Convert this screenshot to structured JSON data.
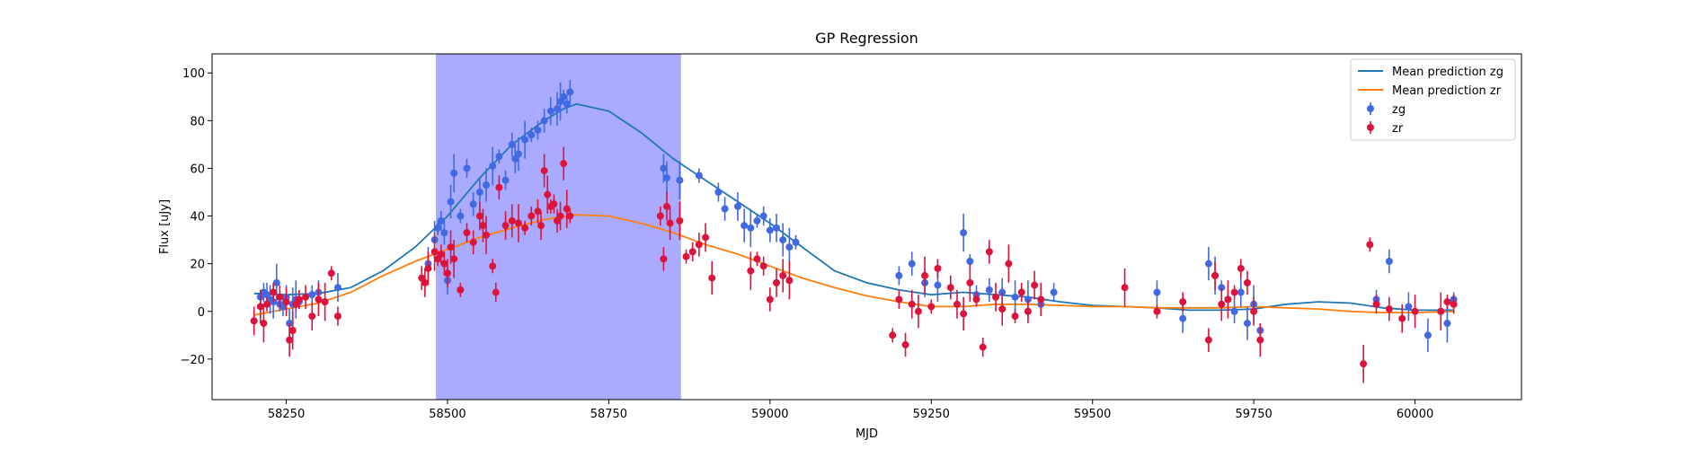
{
  "chart_data": {
    "type": "scatter",
    "title": "GP Regression",
    "xlabel": "MJD",
    "ylabel": "Flux [uJy]",
    "xlim": [
      58135,
      60165
    ],
    "ylim": [
      -37,
      108
    ],
    "xticks": [
      58250,
      58500,
      58750,
      59000,
      59250,
      59500,
      59750,
      60000
    ],
    "yticks": [
      -20,
      0,
      20,
      40,
      60,
      80,
      100
    ],
    "grid": false,
    "legend": "top-right",
    "shaded_region": {
      "x0": 58482,
      "x1": 58862,
      "color": "#aaaaff"
    },
    "lines": [
      {
        "name": "Mean prediction zg",
        "color": "#1f77b4",
        "x": [
          58200,
          58250,
          58300,
          58350,
          58400,
          58450,
          58500,
          58550,
          58600,
          58650,
          58680,
          58700,
          58750,
          58800,
          58850,
          58900,
          58950,
          59000,
          59050,
          59100,
          59150,
          59200,
          59250,
          59300,
          59350,
          59400,
          59450,
          59500,
          59550,
          59600,
          59650,
          59700,
          59750,
          59800,
          59850,
          59900,
          59950,
          60000,
          60060
        ],
        "y": [
          7.5,
          7.0,
          7.5,
          10,
          17,
          27,
          40,
          56,
          70,
          80,
          85,
          87,
          84,
          75,
          64,
          55,
          46,
          37,
          27,
          17,
          12,
          9,
          7,
          8,
          7,
          6,
          4,
          2.5,
          2,
          1.5,
          0.5,
          0.5,
          1,
          3,
          4,
          3.5,
          1.5,
          0.5,
          0.5
        ]
      },
      {
        "name": "Mean prediction zr",
        "color": "#ff7f0e",
        "x": [
          58200,
          58250,
          58300,
          58350,
          58400,
          58450,
          58500,
          58550,
          58600,
          58650,
          58700,
          58750,
          58800,
          58850,
          58900,
          58950,
          59000,
          59050,
          59100,
          59150,
          59200,
          59250,
          59300,
          59350,
          59400,
          59450,
          59500,
          59550,
          59600,
          59650,
          59700,
          59750,
          59800,
          59850,
          59900,
          59950,
          60000,
          60060
        ],
        "y": [
          -1.5,
          1,
          3.5,
          8,
          15,
          21,
          26,
          31,
          35,
          38.5,
          40.5,
          40,
          37,
          33,
          28,
          24,
          19,
          14,
          10,
          6.5,
          4,
          2,
          2,
          3,
          3,
          2.5,
          2,
          2,
          1.5,
          1.5,
          1.5,
          2,
          1.5,
          1,
          0,
          -0.5,
          -0.5,
          0
        ]
      }
    ],
    "series": [
      {
        "name": "zg",
        "color": "#4169e1",
        "x": [
          58210,
          58215,
          58220,
          58225,
          58230,
          58235,
          58240,
          58245,
          58250,
          58255,
          58260,
          58265,
          58270,
          58290,
          58300,
          58330,
          58470,
          58480,
          58485,
          58490,
          58495,
          58500,
          58505,
          58510,
          58520,
          58530,
          58540,
          58550,
          58560,
          58570,
          58580,
          58590,
          58600,
          58605,
          58610,
          58620,
          58630,
          58640,
          58650,
          58660,
          58670,
          58675,
          58680,
          58685,
          58690,
          58835,
          58840,
          58860,
          58890,
          58920,
          58930,
          58950,
          58960,
          58970,
          58980,
          58990,
          59000,
          59010,
          59020,
          59030,
          59040,
          59200,
          59220,
          59240,
          59260,
          59300,
          59310,
          59320,
          59340,
          59360,
          59380,
          59400,
          59420,
          59440,
          59600,
          59640,
          59680,
          59690,
          59700,
          59710,
          59720,
          59730,
          59740,
          59750,
          59760,
          59940,
          59960,
          59990,
          60020,
          60050,
          60060
        ],
        "y": [
          6,
          8,
          7,
          5,
          4,
          12,
          3,
          2,
          6,
          -5,
          3,
          5,
          4,
          7,
          8,
          10,
          20,
          30,
          35,
          38,
          33,
          13,
          46,
          58,
          40,
          60,
          45,
          50,
          53,
          61,
          65,
          55,
          70,
          64,
          66,
          72,
          74,
          76,
          80,
          84,
          85,
          88,
          90,
          87,
          92,
          60,
          56,
          55,
          57,
          50,
          43,
          44,
          36,
          35,
          38,
          40,
          34,
          35,
          30,
          27,
          29,
          15,
          20,
          12,
          11,
          33,
          21,
          7,
          9,
          8,
          6,
          5,
          3,
          8,
          8,
          -3,
          20,
          15,
          10,
          5,
          0,
          8,
          -5,
          3,
          -8,
          5,
          21,
          2,
          -10,
          -5,
          5
        ]
      },
      {
        "name": "zr",
        "color": "#dc143c",
        "x": [
          58200,
          58210,
          58215,
          58220,
          58230,
          58240,
          58250,
          58255,
          58260,
          58265,
          58270,
          58280,
          58290,
          58300,
          58310,
          58320,
          58330,
          58460,
          58465,
          58470,
          58480,
          58485,
          58490,
          58495,
          58500,
          58505,
          58510,
          58520,
          58530,
          58540,
          58550,
          58555,
          58560,
          58570,
          58575,
          58580,
          58590,
          58600,
          58610,
          58620,
          58630,
          58640,
          58645,
          58650,
          58655,
          58660,
          58665,
          58670,
          58675,
          58680,
          58685,
          58690,
          58830,
          58835,
          58840,
          58845,
          58860,
          58870,
          58880,
          58890,
          58900,
          58910,
          58970,
          58980,
          58990,
          59000,
          59010,
          59020,
          59030,
          59190,
          59200,
          59210,
          59220,
          59230,
          59240,
          59250,
          59260,
          59280,
          59290,
          59300,
          59310,
          59320,
          59330,
          59340,
          59350,
          59360,
          59370,
          59380,
          59390,
          59400,
          59410,
          59420,
          59550,
          59600,
          59640,
          59680,
          59690,
          59700,
          59710,
          59720,
          59730,
          59740,
          59750,
          59760,
          59920,
          59930,
          59940,
          59960,
          59980,
          60000,
          60040,
          60050,
          60060
        ],
        "y": [
          -4,
          2,
          -5,
          3,
          8,
          6,
          4,
          -12,
          -8,
          3,
          5,
          6,
          -2,
          5,
          4,
          16,
          -2,
          14,
          12,
          18,
          25,
          22,
          24,
          20,
          16,
          27,
          22,
          9,
          33,
          29,
          40,
          36,
          32,
          19,
          8,
          52,
          36,
          38,
          37,
          35,
          40,
          42,
          36,
          59,
          49,
          44,
          45,
          38,
          40,
          62,
          43,
          40,
          40,
          22,
          44,
          37,
          38,
          23,
          25,
          28,
          31,
          14,
          17,
          22,
          19,
          5,
          12,
          15,
          13,
          -10,
          5,
          -14,
          3,
          0,
          15,
          2,
          18,
          10,
          3,
          -1,
          12,
          5,
          -15,
          25,
          6,
          1,
          20,
          -2,
          8,
          0,
          11,
          5,
          10,
          0,
          4,
          -12,
          15,
          3,
          5,
          8,
          18,
          12,
          0,
          -12,
          -22,
          28,
          3,
          1,
          -3,
          0,
          0,
          4,
          3
        ]
      }
    ]
  }
}
